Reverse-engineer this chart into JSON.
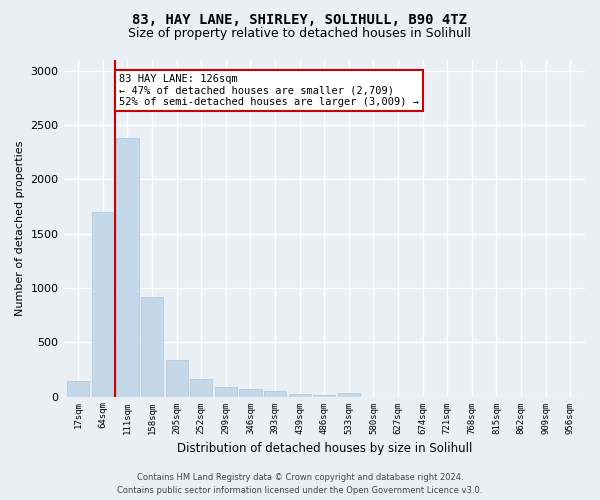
{
  "title_line1": "83, HAY LANE, SHIRLEY, SOLIHULL, B90 4TZ",
  "title_line2": "Size of property relative to detached houses in Solihull",
  "xlabel": "Distribution of detached houses by size in Solihull",
  "ylabel": "Number of detached properties",
  "bar_color": "#c5d8ea",
  "bar_edgecolor": "#adc4d8",
  "categories": [
    "17sqm",
    "64sqm",
    "111sqm",
    "158sqm",
    "205sqm",
    "252sqm",
    "299sqm",
    "346sqm",
    "393sqm",
    "439sqm",
    "486sqm",
    "533sqm",
    "580sqm",
    "627sqm",
    "674sqm",
    "721sqm",
    "768sqm",
    "815sqm",
    "862sqm",
    "909sqm",
    "956sqm"
  ],
  "values": [
    140,
    1700,
    2380,
    920,
    340,
    160,
    90,
    65,
    50,
    20,
    15,
    35,
    0,
    0,
    0,
    0,
    0,
    0,
    0,
    0,
    0
  ],
  "vline_index": 2,
  "vline_color": "#cc0000",
  "annotation_text": "83 HAY LANE: 126sqm\n← 47% of detached houses are smaller (2,709)\n52% of semi-detached houses are larger (3,009) →",
  "annotation_box_edgecolor": "#cc0000",
  "annotation_box_facecolor": "white",
  "ylim": [
    0,
    3100
  ],
  "yticks": [
    0,
    500,
    1000,
    1500,
    2000,
    2500,
    3000
  ],
  "footer": "Contains HM Land Registry data © Crown copyright and database right 2024.\nContains public sector information licensed under the Open Government Licence v3.0.",
  "bg_color": "#eaeff5",
  "plot_bg_color": "#eaeff5"
}
